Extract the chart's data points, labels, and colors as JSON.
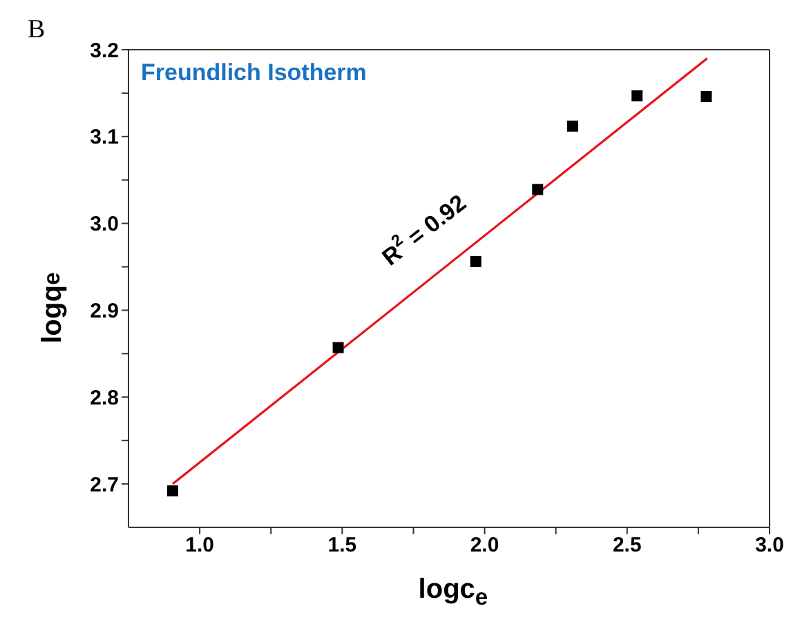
{
  "chart_data": {
    "type": "scatter",
    "title": "Freundlich Isotherm",
    "xlabel": "logc$_{e}$",
    "ylabel": "logq$_{e}$",
    "annotations": [
      "B",
      "R$^{2}$ = 0.92"
    ],
    "x": [
      0.905,
      1.486,
      1.969,
      2.186,
      2.309,
      2.535,
      2.778
    ],
    "series": [
      {
        "color": "#000000",
        "marker": "square",
        "values": [
          2.692,
          2.857,
          2.956,
          3.039,
          3.112,
          3.147,
          3.146
        ]
      },
      {
        "type": "line",
        "color": "#e8141a",
        "marker": "none",
        "line_style": "solid",
        "x": [
          0.905,
          2.781
        ],
        "values": [
          2.7,
          3.19
        ]
      }
    ],
    "xlim": [
      0.75,
      3.0
    ],
    "ylim": [
      2.65,
      3.2
    ],
    "xticks": [
      {
        "value": 1,
        "label": "1.0"
      },
      {
        "value": 1.25,
        "label": null
      },
      {
        "value": 1.5,
        "label": "1.5"
      },
      {
        "value": 1.75,
        "label": null
      },
      {
        "value": 2,
        "label": "2.0"
      },
      {
        "value": 2.25,
        "label": null
      },
      {
        "value": 2.5,
        "label": "2.5"
      },
      {
        "value": 2.75,
        "label": null
      },
      {
        "value": 3,
        "label": "3.0"
      }
    ],
    "yticks": [
      {
        "value": 2.7,
        "label": "2.7"
      },
      {
        "value": 2.75,
        "label": null
      },
      {
        "value": 2.8,
        "label": "2.8"
      },
      {
        "value": 2.85,
        "label": null
      },
      {
        "value": 2.9,
        "label": "2.9"
      },
      {
        "value": 2.95,
        "label": null
      },
      {
        "value": 3,
        "label": "3.0"
      },
      {
        "value": 3.05,
        "label": null
      },
      {
        "value": 3.1,
        "label": "3.1"
      },
      {
        "value": 3.15,
        "label": null
      },
      {
        "value": 3.2,
        "label": "3.2"
      }
    ],
    "tick_labels": true
  }
}
